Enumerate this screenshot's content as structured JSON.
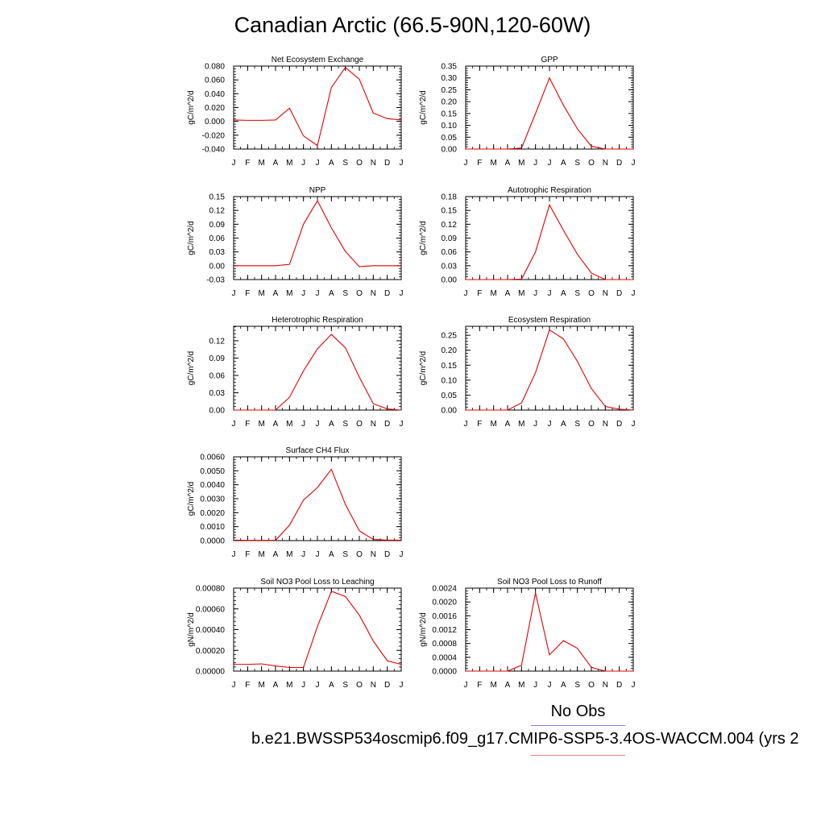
{
  "title": "Canadian Arctic (66.5-90N,120-60W)",
  "legend": {
    "obs_label": "No Obs",
    "obs_color": "#8080f0",
    "case_label": "b.e21.BWSSP534oscmip6.f09_g17.CMIP6-SSP5-3.4OS-WACCM.004 (yrs 2",
    "case_color": "#f08080"
  },
  "chart_data": [
    {
      "type": "line",
      "title": "Net Ecosystem Exchange",
      "ylabel": "gC/m^2/d",
      "categories": [
        "J",
        "F",
        "M",
        "A",
        "M",
        "J",
        "J",
        "A",
        "S",
        "O",
        "N",
        "D",
        "J"
      ],
      "values": [
        0.002,
        0.0015,
        0.0015,
        0.002,
        0.019,
        -0.021,
        -0.035,
        0.049,
        0.078,
        0.061,
        0.012,
        0.004,
        0.002
      ],
      "ylim": [
        -0.04,
        0.08
      ],
      "yticks": [
        -0.04,
        -0.02,
        0.0,
        0.02,
        0.04,
        0.06,
        0.08
      ],
      "ytick_labels": [
        "-0.040",
        "-0.020",
        "0.000",
        "0.020",
        "0.040",
        "0.060",
        "0.080"
      ],
      "color": "#e00000"
    },
    {
      "type": "line",
      "title": "GPP",
      "ylabel": "gC/m^2/d",
      "categories": [
        "J",
        "F",
        "M",
        "A",
        "M",
        "J",
        "J",
        "A",
        "S",
        "O",
        "N",
        "D",
        "J"
      ],
      "values": [
        0.0,
        0.0,
        0.0,
        0.0,
        0.004,
        0.15,
        0.3,
        0.185,
        0.085,
        0.012,
        0.0,
        0.0,
        0.0
      ],
      "ylim": [
        0.0,
        0.35
      ],
      "yticks": [
        0.0,
        0.05,
        0.1,
        0.15,
        0.2,
        0.25,
        0.3,
        0.35
      ],
      "ytick_labels": [
        "0.00",
        "0.05",
        "0.10",
        "0.15",
        "0.20",
        "0.25",
        "0.30",
        "0.35"
      ],
      "color": "#e00000"
    },
    {
      "type": "line",
      "title": "NPP",
      "ylabel": "gC/m^2/d",
      "categories": [
        "J",
        "F",
        "M",
        "A",
        "M",
        "J",
        "J",
        "A",
        "S",
        "O",
        "N",
        "D",
        "J"
      ],
      "values": [
        0.0,
        0.0,
        0.0,
        0.0,
        0.003,
        0.09,
        0.141,
        0.082,
        0.031,
        -0.002,
        0.0,
        0.0,
        0.0
      ],
      "ylim": [
        -0.03,
        0.15
      ],
      "yticks": [
        -0.03,
        0.0,
        0.03,
        0.06,
        0.09,
        0.12,
        0.15
      ],
      "ytick_labels": [
        "-0.03",
        "0.00",
        "0.03",
        "0.06",
        "0.09",
        "0.12",
        "0.15"
      ],
      "color": "#e00000"
    },
    {
      "type": "line",
      "title": "Autotrophic Respiration",
      "ylabel": "gC/m^2/d",
      "categories": [
        "J",
        "F",
        "M",
        "A",
        "M",
        "J",
        "J",
        "A",
        "S",
        "O",
        "N",
        "D",
        "J"
      ],
      "values": [
        0.0,
        0.0,
        0.0,
        0.0,
        0.001,
        0.06,
        0.162,
        0.107,
        0.055,
        0.014,
        0.0,
        0.0,
        0.0
      ],
      "ylim": [
        0.0,
        0.18
      ],
      "yticks": [
        0.0,
        0.03,
        0.06,
        0.09,
        0.12,
        0.15,
        0.18
      ],
      "ytick_labels": [
        "0.00",
        "0.03",
        "0.06",
        "0.09",
        "0.12",
        "0.15",
        "0.18"
      ],
      "color": "#e00000"
    },
    {
      "type": "line",
      "title": "Heterotrophic Respiration",
      "ylabel": "gC/m^2/d",
      "categories": [
        "J",
        "F",
        "M",
        "A",
        "M",
        "J",
        "J",
        "A",
        "S",
        "O",
        "N",
        "D",
        "J"
      ],
      "values": [
        0.0,
        0.0,
        0.0,
        0.0,
        0.022,
        0.068,
        0.106,
        0.131,
        0.108,
        0.057,
        0.011,
        0.002,
        0.0
      ],
      "ylim": [
        0.0,
        0.145
      ],
      "yticks": [
        0.0,
        0.03,
        0.06,
        0.09,
        0.12
      ],
      "ytick_labels": [
        "0.00",
        "0.03",
        "0.06",
        "0.09",
        "0.12"
      ],
      "color": "#e00000"
    },
    {
      "type": "line",
      "title": "Ecosystem Respiration",
      "ylabel": "gC/m^2/d",
      "categories": [
        "J",
        "F",
        "M",
        "A",
        "M",
        "J",
        "J",
        "A",
        "S",
        "O",
        "N",
        "D",
        "J"
      ],
      "values": [
        0.0,
        0.0,
        0.0,
        0.0,
        0.024,
        0.125,
        0.268,
        0.238,
        0.163,
        0.072,
        0.012,
        0.003,
        0.0
      ],
      "ylim": [
        0.0,
        0.28
      ],
      "yticks": [
        0.0,
        0.05,
        0.1,
        0.15,
        0.2,
        0.25
      ],
      "ytick_labels": [
        "0.00",
        "0.05",
        "0.10",
        "0.15",
        "0.20",
        "0.25"
      ],
      "color": "#e00000"
    },
    {
      "type": "line",
      "title": "Surface CH4 Flux",
      "ylabel": "gC/m^2/d",
      "categories": [
        "J",
        "F",
        "M",
        "A",
        "M",
        "J",
        "J",
        "A",
        "S",
        "O",
        "N",
        "D",
        "J"
      ],
      "values": [
        3e-05,
        2e-05,
        2e-05,
        2e-05,
        0.0011,
        0.0029,
        0.0038,
        0.0051,
        0.0026,
        0.0007,
        8e-05,
        3e-05,
        3e-05
      ],
      "ylim": [
        0.0,
        0.006
      ],
      "yticks": [
        0.0,
        0.001,
        0.002,
        0.003,
        0.004,
        0.005,
        0.006
      ],
      "ytick_labels": [
        "0.0000",
        "0.0010",
        "0.0020",
        "0.0030",
        "0.0040",
        "0.0050",
        "0.0060"
      ],
      "color": "#e00000"
    },
    {
      "type": "line",
      "title": "Soil NO3 Pool Loss to Leaching",
      "ylabel": "gN/m^2/d",
      "categories": [
        "J",
        "F",
        "M",
        "A",
        "M",
        "J",
        "J",
        "A",
        "S",
        "O",
        "N",
        "D",
        "J"
      ],
      "values": [
        6.5e-05,
        6.5e-05,
        7e-05,
        5e-05,
        3.5e-05,
        3.5e-05,
        0.00043,
        0.00077,
        0.00072,
        0.00054,
        0.00029,
        0.0001,
        6.5e-05
      ],
      "ylim": [
        0.0,
        0.0008
      ],
      "yticks": [
        0.0,
        0.0002,
        0.0004,
        0.0006,
        0.0008
      ],
      "ytick_labels": [
        "0.00000",
        "0.00020",
        "0.00040",
        "0.00060",
        "0.00080"
      ],
      "color": "#e00000"
    },
    {
      "type": "line",
      "title": "Soil NO3 Pool Loss to Runoff",
      "ylabel": "gN/m^2/d",
      "categories": [
        "J",
        "F",
        "M",
        "A",
        "M",
        "J",
        "J",
        "A",
        "S",
        "O",
        "N",
        "D",
        "J"
      ],
      "values": [
        0.0,
        0.0,
        0.0,
        0.0,
        0.00017,
        0.00226,
        0.00047,
        0.00088,
        0.00066,
        0.00011,
        0.0,
        0.0,
        0.0
      ],
      "ylim": [
        0.0,
        0.0024
      ],
      "yticks": [
        0.0,
        0.0004,
        0.0008,
        0.0012,
        0.0016,
        0.002,
        0.0024
      ],
      "ytick_labels": [
        "0.0000",
        "0.0004",
        "0.0008",
        "0.0012",
        "0.0016",
        "0.0020",
        "0.0024"
      ],
      "color": "#e00000"
    }
  ]
}
